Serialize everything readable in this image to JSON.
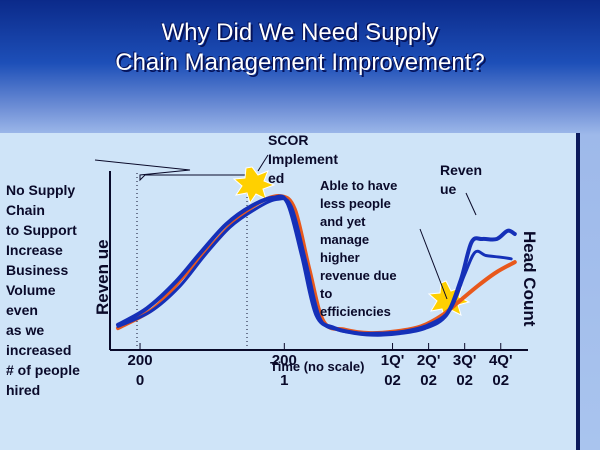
{
  "title_line1": "Why Did We Need Supply",
  "title_line2": "Chain Management Improvement?",
  "annotations": {
    "left": [
      "No Supply",
      "Chain",
      "to Support",
      "Increase",
      "Business",
      "Volume",
      "even",
      "as we",
      "increased",
      "# of people",
      "hired"
    ],
    "scor": [
      "SCOR",
      "Implement",
      "ed"
    ],
    "able": [
      "Able to have",
      "less people",
      "and yet",
      "manage",
      "higher",
      "revenue due",
      "to",
      "efficiencies"
    ],
    "revenue_label": [
      "Reven",
      "ue"
    ]
  },
  "colors": {
    "revenue_line": "#1530b8",
    "headcount_line": "#e8581c",
    "text_dark": "#0a0a2a",
    "burst": "#ffd000"
  },
  "chart_data": {
    "type": "line",
    "title": "",
    "ylabel": "Reven ue",
    "y2label": "Head Count",
    "xlabel": "Time (no scale)",
    "x_ticks": [
      {
        "lines": [
          "200",
          "0"
        ],
        "pos": 0
      },
      {
        "lines": [
          "200",
          "1"
        ],
        "pos": 4
      },
      {
        "lines": [
          "1Q'",
          "02"
        ],
        "pos": 7
      },
      {
        "lines": [
          "2Q'",
          "02"
        ],
        "pos": 8
      },
      {
        "lines": [
          "3Q'",
          "02"
        ],
        "pos": 9
      },
      {
        "lines": [
          "4Q'",
          "02"
        ],
        "pos": 10
      }
    ],
    "xlim": [
      -0.5,
      10.7
    ],
    "ylim": [
      0,
      100
    ],
    "series": [
      {
        "name": "Revenue",
        "x": [
          -0.5,
          0.3,
          1.1,
          1.8,
          2.5,
          3.2,
          3.8,
          4.2,
          4.6,
          5.0,
          5.5,
          6.1,
          6.7,
          7.3,
          8.0,
          8.6,
          9.0,
          9.3,
          9.6,
          10.0,
          10.3,
          10.5
        ],
        "values": [
          8,
          18,
          34,
          52,
          69,
          80,
          85,
          82,
          50,
          14,
          6,
          3,
          2,
          3,
          6,
          14,
          35,
          58,
          60,
          60,
          65,
          63
        ]
      },
      {
        "name": "Head Count",
        "x": [
          -0.5,
          0.5,
          1.3,
          2.1,
          2.8,
          3.4,
          4.0,
          4.4,
          4.8,
          5.2,
          5.8,
          6.5,
          7.2,
          7.9,
          8.5,
          9.0,
          9.5,
          10.0,
          10.5
        ],
        "values": [
          6,
          18,
          37,
          56,
          72,
          82,
          86,
          78,
          42,
          10,
          5,
          3,
          4,
          7,
          14,
          23,
          32,
          40,
          46
        ]
      },
      {
        "name": "Revenue (shadow)",
        "x": [
          -0.5,
          0.4,
          1.2,
          1.9,
          2.6,
          3.3,
          3.9,
          4.3,
          4.7,
          5.1,
          5.6,
          6.2,
          6.8,
          7.4,
          8.1,
          8.7,
          9.1,
          9.4,
          9.7,
          10.1,
          10.4
        ],
        "values": [
          7,
          16,
          31,
          50,
          67,
          78,
          84,
          80,
          47,
          12,
          5,
          3,
          3,
          4,
          8,
          17,
          38,
          52,
          50,
          49,
          48
        ]
      }
    ]
  }
}
